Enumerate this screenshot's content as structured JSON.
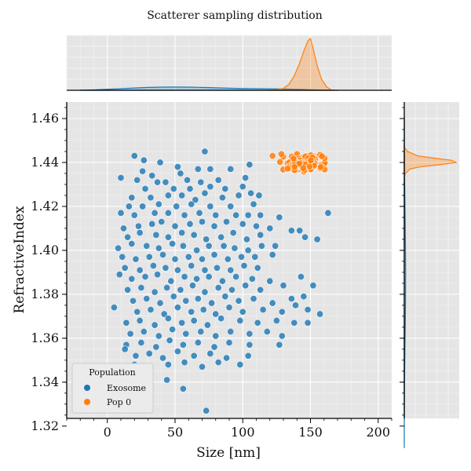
{
  "chart_data": {
    "type": "scatter",
    "title": "Scatterer sampling distribution",
    "xlabel": "Size [nm]",
    "ylabel": "RefractiveIndex",
    "xlim": [
      -30,
      210
    ],
    "ylim": [
      1.3235,
      1.4675
    ],
    "xticks": [
      0,
      50,
      100,
      150,
      200
    ],
    "xtick_labels": [
      "0",
      "50",
      "100",
      "150",
      "200"
    ],
    "yticks": [
      1.32,
      1.34,
      1.36,
      1.38,
      1.4,
      1.42,
      1.44,
      1.46
    ],
    "ytick_labels": [
      "1.32",
      "1.34",
      "1.36",
      "1.38",
      "1.40",
      "1.42",
      "1.44",
      "1.46"
    ],
    "grid": true,
    "legend": {
      "title": "Population",
      "placement": "lower-left"
    },
    "series": [
      {
        "name": "Exosome",
        "color": "#1f77b4",
        "points": [
          [
            20,
            1.443
          ],
          [
            27,
            1.441
          ],
          [
            72,
            1.445
          ],
          [
            39,
            1.44
          ],
          [
            52,
            1.438
          ],
          [
            67,
            1.437
          ],
          [
            26,
            1.436
          ],
          [
            76,
            1.437
          ],
          [
            91,
            1.437
          ],
          [
            105,
            1.439
          ],
          [
            33,
            1.434
          ],
          [
            54,
            1.435
          ],
          [
            59,
            1.432
          ],
          [
            10,
            1.433
          ],
          [
            22,
            1.432
          ],
          [
            37,
            1.431
          ],
          [
            43,
            1.431
          ],
          [
            69,
            1.431
          ],
          [
            82,
            1.432
          ],
          [
            102,
            1.433
          ],
          [
            28,
            1.428
          ],
          [
            49,
            1.428
          ],
          [
            61,
            1.428
          ],
          [
            76,
            1.429
          ],
          [
            87,
            1.428
          ],
          [
            100,
            1.429
          ],
          [
            18,
            1.424
          ],
          [
            32,
            1.424
          ],
          [
            45,
            1.425
          ],
          [
            55,
            1.425
          ],
          [
            65,
            1.423
          ],
          [
            72,
            1.426
          ],
          [
            85,
            1.424
          ],
          [
            97,
            1.425
          ],
          [
            106,
            1.426
          ],
          [
            112,
            1.425
          ],
          [
            16,
            1.42
          ],
          [
            26,
            1.42
          ],
          [
            38,
            1.421
          ],
          [
            51,
            1.42
          ],
          [
            62,
            1.421
          ],
          [
            76,
            1.42
          ],
          [
            91,
            1.42
          ],
          [
            108,
            1.421
          ],
          [
            10,
            1.417
          ],
          [
            20,
            1.416
          ],
          [
            35,
            1.417
          ],
          [
            45,
            1.417
          ],
          [
            57,
            1.416
          ],
          [
            68,
            1.417
          ],
          [
            80,
            1.416
          ],
          [
            95,
            1.416
          ],
          [
            104,
            1.416
          ],
          [
            113,
            1.416
          ],
          [
            127,
            1.415
          ],
          [
            163,
            1.417
          ],
          [
            12,
            1.41
          ],
          [
            23,
            1.411
          ],
          [
            33,
            1.412
          ],
          [
            40,
            1.413
          ],
          [
            50,
            1.411
          ],
          [
            61,
            1.412
          ],
          [
            70,
            1.413
          ],
          [
            79,
            1.411
          ],
          [
            88,
            1.413
          ],
          [
            100,
            1.412
          ],
          [
            110,
            1.411
          ],
          [
            120,
            1.41
          ],
          [
            15,
            1.406
          ],
          [
            24,
            1.408
          ],
          [
            36,
            1.407
          ],
          [
            45,
            1.406
          ],
          [
            55,
            1.408
          ],
          [
            64,
            1.407
          ],
          [
            73,
            1.405
          ],
          [
            84,
            1.406
          ],
          [
            93,
            1.408
          ],
          [
            103,
            1.405
          ],
          [
            113,
            1.407
          ],
          [
            136,
            1.409
          ],
          [
            142,
            1.409
          ],
          [
            155,
            1.405
          ],
          [
            8,
            1.401
          ],
          [
            18,
            1.403
          ],
          [
            29,
            1.402
          ],
          [
            38,
            1.401
          ],
          [
            48,
            1.403
          ],
          [
            56,
            1.402
          ],
          [
            66,
            1.4
          ],
          [
            75,
            1.402
          ],
          [
            86,
            1.402
          ],
          [
            94,
            1.401
          ],
          [
            104,
            1.4
          ],
          [
            114,
            1.402
          ],
          [
            124,
            1.402
          ],
          [
            146,
            1.406
          ],
          [
            11,
            1.397
          ],
          [
            21,
            1.396
          ],
          [
            31,
            1.397
          ],
          [
            41,
            1.398
          ],
          [
            50,
            1.396
          ],
          [
            60,
            1.397
          ],
          [
            70,
            1.396
          ],
          [
            79,
            1.398
          ],
          [
            89,
            1.396
          ],
          [
            99,
            1.397
          ],
          [
            109,
            1.397
          ],
          [
            122,
            1.398
          ],
          [
            13,
            1.392
          ],
          [
            24,
            1.391
          ],
          [
            34,
            1.393
          ],
          [
            43,
            1.392
          ],
          [
            52,
            1.391
          ],
          [
            62,
            1.393
          ],
          [
            72,
            1.391
          ],
          [
            81,
            1.392
          ],
          [
            91,
            1.391
          ],
          [
            101,
            1.393
          ],
          [
            111,
            1.392
          ],
          [
            18,
            1.387
          ],
          [
            28,
            1.388
          ],
          [
            37,
            1.389
          ],
          [
            47,
            1.386
          ],
          [
            57,
            1.388
          ],
          [
            66,
            1.387
          ],
          [
            75,
            1.388
          ],
          [
            85,
            1.386
          ],
          [
            95,
            1.388
          ],
          [
            107,
            1.387
          ],
          [
            120,
            1.386
          ],
          [
            143,
            1.388
          ],
          [
            9,
            1.389
          ],
          [
            15,
            1.382
          ],
          [
            25,
            1.383
          ],
          [
            35,
            1.381
          ],
          [
            44,
            1.383
          ],
          [
            54,
            1.382
          ],
          [
            63,
            1.384
          ],
          [
            72,
            1.381
          ],
          [
            82,
            1.383
          ],
          [
            92,
            1.382
          ],
          [
            102,
            1.384
          ],
          [
            113,
            1.382
          ],
          [
            130,
            1.384
          ],
          [
            152,
            1.384
          ],
          [
            19,
            1.377
          ],
          [
            29,
            1.378
          ],
          [
            39,
            1.376
          ],
          [
            49,
            1.379
          ],
          [
            58,
            1.377
          ],
          [
            67,
            1.378
          ],
          [
            77,
            1.376
          ],
          [
            87,
            1.379
          ],
          [
            97,
            1.377
          ],
          [
            108,
            1.378
          ],
          [
            122,
            1.376
          ],
          [
            136,
            1.378
          ],
          [
            145,
            1.379
          ],
          [
            22,
            1.372
          ],
          [
            32,
            1.373
          ],
          [
            42,
            1.371
          ],
          [
            52,
            1.374
          ],
          [
            62,
            1.372
          ],
          [
            71,
            1.373
          ],
          [
            80,
            1.371
          ],
          [
            90,
            1.374
          ],
          [
            100,
            1.372
          ],
          [
            115,
            1.373
          ],
          [
            129,
            1.372
          ],
          [
            139,
            1.375
          ],
          [
            148,
            1.373
          ],
          [
            5,
            1.374
          ],
          [
            157,
            1.371
          ],
          [
            14,
            1.367
          ],
          [
            24,
            1.368
          ],
          [
            35,
            1.366
          ],
          [
            45,
            1.369
          ],
          [
            55,
            1.367
          ],
          [
            64,
            1.368
          ],
          [
            74,
            1.366
          ],
          [
            84,
            1.369
          ],
          [
            98,
            1.368
          ],
          [
            111,
            1.367
          ],
          [
            125,
            1.368
          ],
          [
            138,
            1.367
          ],
          [
            148,
            1.367
          ],
          [
            17,
            1.362
          ],
          [
            27,
            1.363
          ],
          [
            38,
            1.361
          ],
          [
            48,
            1.364
          ],
          [
            58,
            1.362
          ],
          [
            69,
            1.363
          ],
          [
            80,
            1.361
          ],
          [
            91,
            1.363
          ],
          [
            105,
            1.362
          ],
          [
            118,
            1.363
          ],
          [
            129,
            1.361
          ],
          [
            14,
            1.357
          ],
          [
            25,
            1.358
          ],
          [
            36,
            1.356
          ],
          [
            46,
            1.359
          ],
          [
            56,
            1.357
          ],
          [
            67,
            1.358
          ],
          [
            79,
            1.356
          ],
          [
            90,
            1.358
          ],
          [
            105,
            1.357
          ],
          [
            127,
            1.357
          ],
          [
            13,
            1.355
          ],
          [
            21,
            1.352
          ],
          [
            31,
            1.353
          ],
          [
            41,
            1.351
          ],
          [
            52,
            1.354
          ],
          [
            64,
            1.352
          ],
          [
            76,
            1.353
          ],
          [
            88,
            1.351
          ],
          [
            104,
            1.352
          ],
          [
            20,
            1.348
          ],
          [
            30,
            1.347
          ],
          [
            45,
            1.348
          ],
          [
            57,
            1.349
          ],
          [
            70,
            1.347
          ],
          [
            82,
            1.349
          ],
          [
            98,
            1.348
          ],
          [
            12,
            1.342
          ],
          [
            27,
            1.344
          ],
          [
            44,
            1.341
          ],
          [
            56,
            1.337
          ],
          [
            73,
            1.327
          ]
        ]
      },
      {
        "name": "Pop 0",
        "color": "#ff7f0e",
        "center": [
          144,
          1.4395
        ],
        "spread": [
          7.5,
          0.0018
        ],
        "n": 150,
        "points": [
          [
            122,
            1.443
          ]
        ]
      }
    ],
    "marginal_x": {
      "type": "kde",
      "note": "",
      "Exosome": {
        "x": [
          -20,
          -10,
          0,
          10,
          20,
          30,
          40,
          50,
          60,
          70,
          80,
          90,
          100,
          110,
          120,
          130,
          140,
          150,
          160,
          170
        ],
        "density": [
          0.03,
          0.08,
          0.18,
          0.3,
          0.42,
          0.52,
          0.58,
          0.6,
          0.58,
          0.52,
          0.45,
          0.38,
          0.33,
          0.3,
          0.28,
          0.24,
          0.17,
          0.1,
          0.04,
          0.01
        ]
      },
      "Pop 0": {
        "x": [
          118,
          125,
          130,
          134,
          138,
          142,
          145,
          148,
          150,
          152,
          155,
          158,
          162,
          166
        ],
        "density": [
          0.0,
          0.03,
          0.15,
          0.45,
          1.1,
          2.1,
          3.0,
          3.8,
          4.0,
          3.2,
          1.9,
          0.9,
          0.25,
          0.0
        ]
      }
    },
    "marginal_y": {
      "type": "kde",
      "Exosome": {
        "y": [
          1.31,
          1.32,
          1.33,
          1.34,
          1.35,
          1.36,
          1.37,
          1.38,
          1.39,
          1.4,
          1.41,
          1.42,
          1.43,
          1.44,
          1.45,
          1.46
        ],
        "density": [
          0.0,
          0.02,
          0.05,
          0.12,
          0.25,
          0.4,
          0.55,
          0.64,
          0.66,
          0.6,
          0.48,
          0.35,
          0.22,
          0.12,
          0.05,
          0.02
        ]
      },
      "Pop 0": {
        "y": [
          1.433,
          1.435,
          1.437,
          1.438,
          1.439,
          1.44,
          1.441,
          1.442,
          1.443,
          1.445,
          1.447
        ],
        "density": [
          0.0,
          0.1,
          0.5,
          1.4,
          3.2,
          4.6,
          4.2,
          2.6,
          1.2,
          0.3,
          0.0
        ]
      }
    }
  }
}
